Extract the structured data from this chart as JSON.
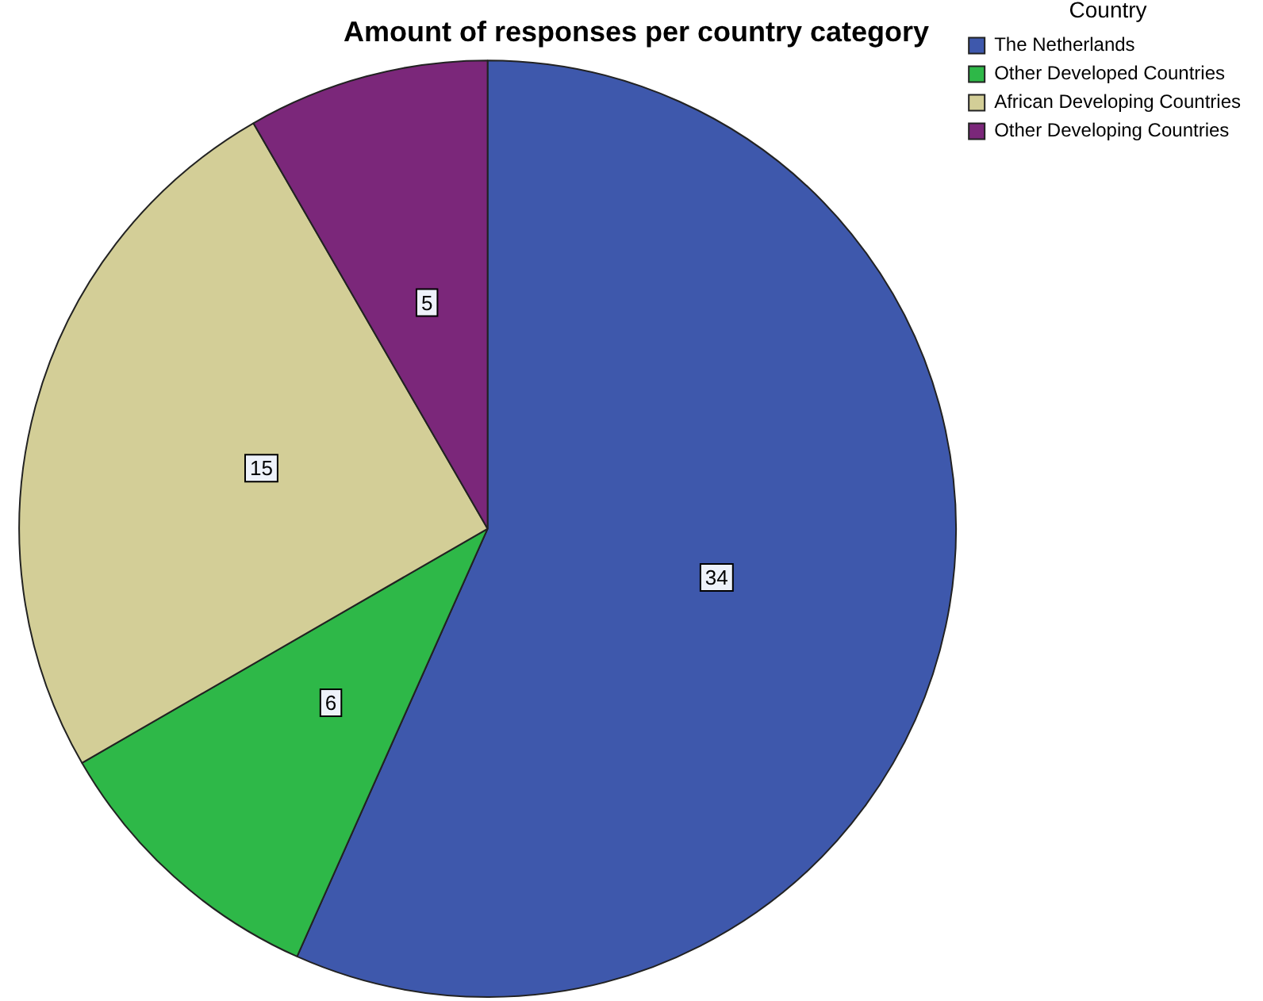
{
  "chart_data": {
    "type": "pie",
    "title": "Amount of responses per country category",
    "legend_title": "Country",
    "legend": "top right",
    "data_labels": true,
    "categories": [
      "The Netherlands",
      "Other Developed Countries",
      "African Developing Countries",
      "Other Developing Countries"
    ],
    "values": [
      34,
      6,
      15,
      5
    ],
    "colors": [
      "#3e58ac",
      "#2eb848",
      "#d3ce97",
      "#7b277a"
    ]
  }
}
